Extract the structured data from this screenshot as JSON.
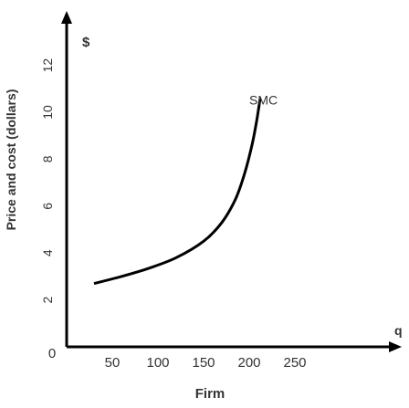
{
  "chart_data": {
    "type": "line",
    "title": "",
    "xlabel": "Firm",
    "ylabel": "Price and cost (dollars)",
    "x_axis_symbol": "q",
    "y_axis_symbol": "$",
    "xlim": [
      0,
      300
    ],
    "ylim": [
      0,
      14
    ],
    "x_ticks": [
      0,
      50,
      100,
      150,
      200,
      250
    ],
    "y_ticks": [
      2,
      4,
      6,
      8,
      10,
      12
    ],
    "y_tick_labels": [
      "2",
      "4",
      "6",
      "8",
      "10",
      "12"
    ],
    "x_tick_labels": [
      "0",
      "50",
      "100",
      "150",
      "200",
      "250"
    ],
    "series": [
      {
        "name": "SMC",
        "x": [
          30,
          60,
          90,
          120,
          150,
          170,
          185,
          195,
          203,
          208,
          212
        ],
        "y": [
          2.7,
          3.0,
          3.35,
          3.8,
          4.5,
          5.3,
          6.3,
          7.4,
          8.6,
          9.6,
          10.6
        ]
      }
    ],
    "annotations": [
      {
        "text": "SMC",
        "x": 205,
        "y": 11.5
      }
    ],
    "colors": {
      "axis": "#000000",
      "curve": "#000000",
      "text": "#333333"
    }
  }
}
